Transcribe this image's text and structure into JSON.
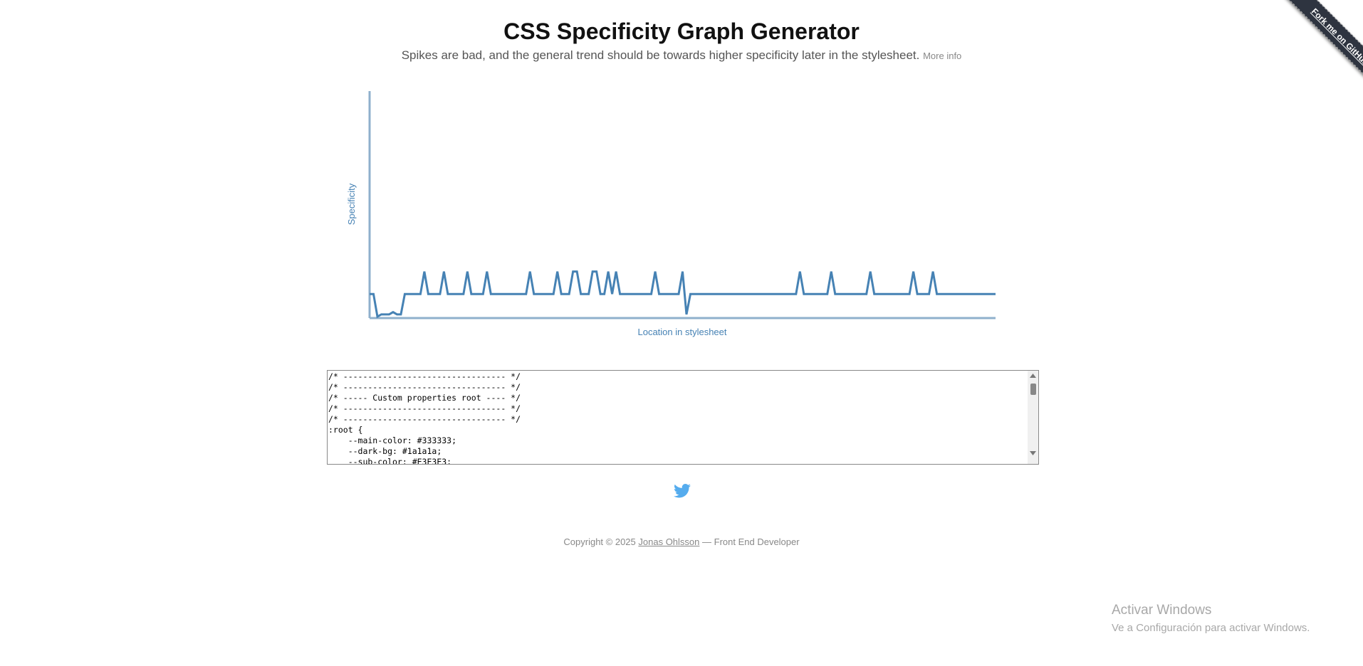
{
  "header": {
    "title": "CSS Specificity Graph Generator",
    "subtitle": "Spikes are bad, and the general trend should be towards higher specificity later in the stylesheet.",
    "more_info": "More info"
  },
  "chart_data": {
    "type": "line",
    "y_label": "Specificity",
    "x_label": "Location in stylesheet",
    "color": "#4682b4",
    "ylim": [
      0,
      100
    ],
    "values": [
      10,
      10,
      0,
      1,
      1,
      1,
      2,
      1,
      1,
      10,
      10,
      10,
      10,
      10,
      20,
      10,
      10,
      10,
      10,
      20,
      10,
      10,
      10,
      10,
      10,
      20,
      10,
      10,
      10,
      10,
      20,
      10,
      10,
      10,
      10,
      10,
      10,
      10,
      10,
      10,
      10,
      20,
      10,
      10,
      10,
      10,
      10,
      10,
      20,
      10,
      10,
      10,
      20,
      20,
      10,
      10,
      10,
      20,
      20,
      10,
      10,
      20,
      10,
      20,
      10,
      10,
      10,
      10,
      10,
      10,
      10,
      10,
      10,
      20,
      10,
      10,
      10,
      10,
      10,
      10,
      20,
      1,
      10,
      10,
      10,
      10,
      10,
      10,
      10,
      10,
      10,
      10,
      10,
      10,
      10,
      10,
      10,
      10,
      10,
      10,
      10,
      10,
      10,
      10,
      10,
      10,
      10,
      10,
      10,
      10,
      20,
      10,
      10,
      10,
      10,
      10,
      10,
      10,
      20,
      10,
      10,
      10,
      10,
      10,
      10,
      10,
      10,
      10,
      20,
      10,
      10,
      10,
      10,
      10,
      10,
      10,
      10,
      10,
      10,
      20,
      10,
      10,
      10,
      10,
      20,
      10,
      10,
      10,
      10,
      10,
      10,
      10,
      10,
      10,
      10,
      10,
      10,
      10,
      10,
      10,
      10
    ]
  },
  "editor": {
    "lines": [
      "/* --------------------------------- */",
      "/* --------------------------------- */",
      "/* ----- Custom properties root ---- */",
      "/* --------------------------------- */",
      "/* --------------------------------- */",
      ":root {",
      "    --main-color: #333333;",
      "    --dark-bg: #1a1a1a;",
      "    --sub-color: #E3E3E3;"
    ]
  },
  "footer": {
    "copyright": "Copyright © 2025",
    "author": "Jonas Ohlsson",
    "role": "— Front End Developer"
  },
  "ribbon": "Fork me on GitHub",
  "watermark": {
    "title": "Activar Windows",
    "subtitle": "Ve a Configuración para activar Windows."
  }
}
